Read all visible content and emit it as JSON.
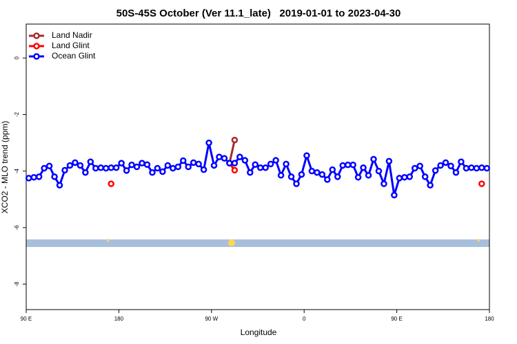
{
  "chart_data": {
    "type": "line",
    "title": "50S-45S October (Ver 11.1_late)   2019-01-01 to 2023-04-30",
    "xlabel": "Longitude",
    "ylabel": "XCO2 - MLO trend (ppm)",
    "xlim": [
      90,
      540
    ],
    "ylim": [
      -8.9,
      1.2
    ],
    "xticks": [
      {
        "value": 90,
        "label": "90 E"
      },
      180,
      {
        "value": 270,
        "label": "90 W"
      },
      {
        "value": 360,
        "label": "0"
      },
      {
        "value": 450,
        "label": "90 E"
      },
      {
        "value": 540,
        "label": "180"
      }
    ],
    "yticks": [
      0,
      -2,
      -4,
      -6,
      -8
    ],
    "legend": "top-left",
    "series": [
      {
        "name": "Land Nadir",
        "color": "#a52a2a",
        "x": [
          287.5,
          292.5
        ],
        "values": [
          -3.72,
          -2.9
        ]
      },
      {
        "name": "Land Glint",
        "color": "#ff0000",
        "x": [
          172.5,
          287.5,
          292.5,
          532.5
        ],
        "values": [
          -4.45,
          -3.72,
          -3.97,
          -4.45
        ]
      },
      {
        "name": "Ocean Glint",
        "color": "#0000ff",
        "x": [
          92.5,
          97.5,
          102.5,
          107.5,
          112.5,
          117.5,
          122.5,
          127.5,
          132.5,
          137.5,
          142.5,
          147.5,
          152.5,
          157.5,
          162.5,
          167.5,
          172.5,
          177.5,
          182.5,
          187.5,
          192.5,
          197.5,
          202.5,
          207.5,
          212.5,
          217.5,
          222.5,
          227.5,
          232.5,
          237.5,
          242.5,
          247.5,
          252.5,
          257.5,
          262.5,
          267.5,
          272.5,
          277.5,
          282.5,
          287.5,
          292.5,
          297.5,
          302.5,
          307.5,
          312.5,
          317.5,
          322.5,
          327.5,
          332.5,
          337.5,
          342.5,
          347.5,
          352.5,
          357.5,
          362.5,
          367.5,
          372.5,
          377.5,
          382.5,
          387.5,
          392.5,
          397.5,
          402.5,
          407.5,
          412.5,
          417.5,
          422.5,
          427.5,
          432.5,
          437.5,
          442.5,
          447.5,
          452.5,
          457.5,
          462.5,
          467.5,
          472.5,
          477.5,
          482.5,
          487.5,
          492.5,
          497.5,
          502.5,
          507.5,
          512.5,
          517.5,
          522.5,
          527.5,
          532.5,
          537.5
        ],
        "values": [
          -4.25,
          -4.22,
          -4.2,
          -3.9,
          -3.82,
          -4.2,
          -4.5,
          -3.97,
          -3.8,
          -3.7,
          -3.8,
          -4.05,
          -3.67,
          -3.9,
          -3.88,
          -3.9,
          -3.88,
          -3.88,
          -3.72,
          -3.98,
          -3.78,
          -3.85,
          -3.72,
          -3.77,
          -4.05,
          -3.9,
          -4.02,
          -3.8,
          -3.9,
          -3.85,
          -3.63,
          -3.85,
          -3.7,
          -3.75,
          -3.95,
          -3.0,
          -3.8,
          -3.5,
          -3.55,
          -3.72,
          -3.72,
          -3.5,
          -3.62,
          -4.05,
          -3.77,
          -3.88,
          -3.88,
          -3.75,
          -3.62,
          -4.15,
          -3.75,
          -4.2,
          -4.45,
          -4.12,
          -3.45,
          -4.0,
          -4.05,
          -4.12,
          -4.3,
          -3.95,
          -4.2,
          -3.8,
          -3.78,
          -3.78,
          -4.22,
          -3.88,
          -4.15,
          -3.58,
          -4.0,
          -4.45,
          -3.65,
          -4.85,
          -4.25,
          -4.22,
          -4.2,
          -3.9,
          -3.82,
          -4.2,
          -4.5,
          -3.98,
          -3.8,
          -3.7,
          -3.82,
          -4.05,
          -3.67,
          -3.9,
          -3.88,
          -3.9,
          -3.88,
          -3.9
        ]
      }
    ]
  }
}
